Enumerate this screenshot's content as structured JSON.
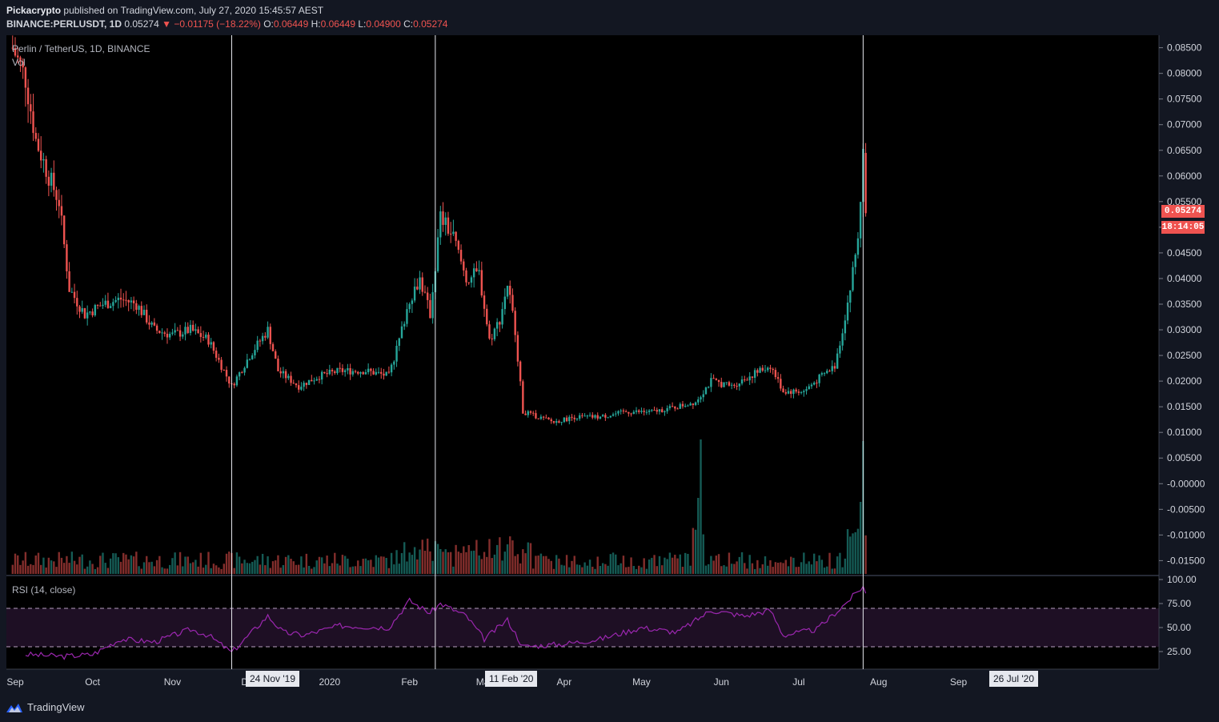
{
  "header": {
    "author": "Pickacrypto",
    "published": "published on TradingView.com, July 27, 2020 15:45:57 AEST",
    "symbol": "BINANCE:PERLUSDT, 1D",
    "last": "0.05274",
    "change_arrow": "▼",
    "change": "−0.01175 (−18.22%)",
    "o_label": "O:",
    "o_value": "0.06449",
    "h_label": "H:",
    "h_value": "0.06449",
    "l_label": "L:",
    "l_value": "0.04900",
    "c_label": "C:",
    "c_value": "0.05274"
  },
  "legend": {
    "title": "Perlin / TetherUS, 1D, BINANCE",
    "vol": "Vol",
    "rsi": "RSI (14, close)"
  },
  "price_tags": {
    "last_price": "0.05274",
    "countdown": "18:14:05"
  },
  "date_markers": [
    {
      "label": "24 Nov '19"
    },
    {
      "label": "11 Feb '20"
    },
    {
      "label": "26 Jul '20"
    }
  ],
  "footer": {
    "brand": "TradingView"
  },
  "colors": {
    "background": "#131722",
    "up": "#26a69a",
    "down": "#ef5350",
    "rsi_line": "#9c27b0",
    "rsi_band": "#2a1232"
  },
  "chart_data": [
    {
      "type": "candlestick",
      "title": "Perlin / TetherUS, 1D, BINANCE",
      "price_axis_ticks": [
        "0.08500",
        "0.08000",
        "0.07500",
        "0.07000",
        "0.06500",
        "0.06000",
        "0.05500",
        "0.05000",
        "0.04500",
        "0.04000",
        "0.03500",
        "0.03000",
        "0.02500",
        "0.02000",
        "0.01500",
        "0.01000",
        "0.00500",
        "-0.00000",
        "-0.00500",
        "-0.01000",
        "-0.01500"
      ],
      "price_ylim": [
        -0.0165,
        0.0865
      ],
      "time_axis_ticks": [
        "Sep",
        "Oct",
        "Nov",
        "Dec",
        "2020",
        "Feb",
        "Mar",
        "Apr",
        "May",
        "Jun",
        "Jul",
        "Aug",
        "Sep"
      ],
      "close_path": [
        [
          "2019-08-31",
          0.085
        ],
        [
          "2019-09-05",
          0.079
        ],
        [
          "2019-09-09",
          0.067
        ],
        [
          "2019-09-14",
          0.06
        ],
        [
          "2019-09-18",
          0.055
        ],
        [
          "2019-09-22",
          0.038
        ],
        [
          "2019-09-28",
          0.033
        ],
        [
          "2019-10-05",
          0.035
        ],
        [
          "2019-10-12",
          0.036
        ],
        [
          "2019-10-18",
          0.035
        ],
        [
          "2019-10-25",
          0.03
        ],
        [
          "2019-11-01",
          0.029
        ],
        [
          "2019-11-08",
          0.03
        ],
        [
          "2019-11-15",
          0.028
        ],
        [
          "2019-11-24",
          0.019
        ],
        [
          "2019-12-01",
          0.025
        ],
        [
          "2019-12-08",
          0.03
        ],
        [
          "2019-12-12",
          0.022
        ],
        [
          "2019-12-20",
          0.019
        ],
        [
          "2019-12-28",
          0.021
        ],
        [
          "2020-01-05",
          0.022
        ],
        [
          "2020-01-15",
          0.022
        ],
        [
          "2020-01-24",
          0.021
        ],
        [
          "2020-01-28",
          0.028
        ],
        [
          "2020-02-01",
          0.036
        ],
        [
          "2020-02-05",
          0.04
        ],
        [
          "2020-02-09",
          0.033
        ],
        [
          "2020-02-13",
          0.052
        ],
        [
          "2020-02-18",
          0.048
        ],
        [
          "2020-02-23",
          0.04
        ],
        [
          "2020-02-28",
          0.041
        ],
        [
          "2020-03-03",
          0.028
        ],
        [
          "2020-03-07",
          0.032
        ],
        [
          "2020-03-10",
          0.039
        ],
        [
          "2020-03-13",
          0.03
        ],
        [
          "2020-03-16",
          0.014
        ],
        [
          "2020-03-22",
          0.013
        ],
        [
          "2020-03-28",
          0.012
        ],
        [
          "2020-04-05",
          0.013
        ],
        [
          "2020-04-15",
          0.013
        ],
        [
          "2020-04-25",
          0.014
        ],
        [
          "2020-05-05",
          0.014
        ],
        [
          "2020-05-15",
          0.015
        ],
        [
          "2020-05-22",
          0.016
        ],
        [
          "2020-05-28",
          0.02
        ],
        [
          "2020-06-05",
          0.019
        ],
        [
          "2020-06-12",
          0.021
        ],
        [
          "2020-06-20",
          0.023
        ],
        [
          "2020-06-25",
          0.018
        ],
        [
          "2020-07-03",
          0.018
        ],
        [
          "2020-07-10",
          0.021
        ],
        [
          "2020-07-15",
          0.023
        ],
        [
          "2020-07-18",
          0.03
        ],
        [
          "2020-07-21",
          0.038
        ],
        [
          "2020-07-24",
          0.048
        ],
        [
          "2020-07-26",
          0.064
        ],
        [
          "2020-07-27",
          0.05274
        ]
      ],
      "series": [
        {
          "name": "Vol",
          "type": "volume_histogram"
        }
      ]
    },
    {
      "type": "line",
      "title": "RSI (14, close)",
      "y_ticks": [
        "100.00",
        "75.00",
        "50.00",
        "25.00"
      ],
      "ylim": [
        0,
        100
      ],
      "bands": [
        30,
        70
      ],
      "points": [
        [
          "2019-09-05",
          22
        ],
        [
          "2019-09-20",
          20
        ],
        [
          "2019-10-01",
          22
        ],
        [
          "2019-10-12",
          38
        ],
        [
          "2019-10-25",
          35
        ],
        [
          "2019-11-08",
          48
        ],
        [
          "2019-11-15",
          42
        ],
        [
          "2019-11-24",
          24
        ],
        [
          "2019-12-08",
          62
        ],
        [
          "2019-12-14",
          45
        ],
        [
          "2019-12-22",
          42
        ],
        [
          "2020-01-05",
          52
        ],
        [
          "2020-01-24",
          50
        ],
        [
          "2020-02-01",
          78
        ],
        [
          "2020-02-09",
          65
        ],
        [
          "2020-02-13",
          75
        ],
        [
          "2020-02-23",
          62
        ],
        [
          "2020-03-01",
          38
        ],
        [
          "2020-03-10",
          58
        ],
        [
          "2020-03-16",
          30
        ],
        [
          "2020-04-01",
          33
        ],
        [
          "2020-04-15",
          38
        ],
        [
          "2020-05-01",
          50
        ],
        [
          "2020-05-15",
          45
        ],
        [
          "2020-05-28",
          68
        ],
        [
          "2020-06-10",
          62
        ],
        [
          "2020-06-20",
          68
        ],
        [
          "2020-06-25",
          42
        ],
        [
          "2020-07-08",
          48
        ],
        [
          "2020-07-18",
          72
        ],
        [
          "2020-07-26",
          93
        ],
        [
          "2020-07-27",
          85
        ]
      ]
    }
  ]
}
